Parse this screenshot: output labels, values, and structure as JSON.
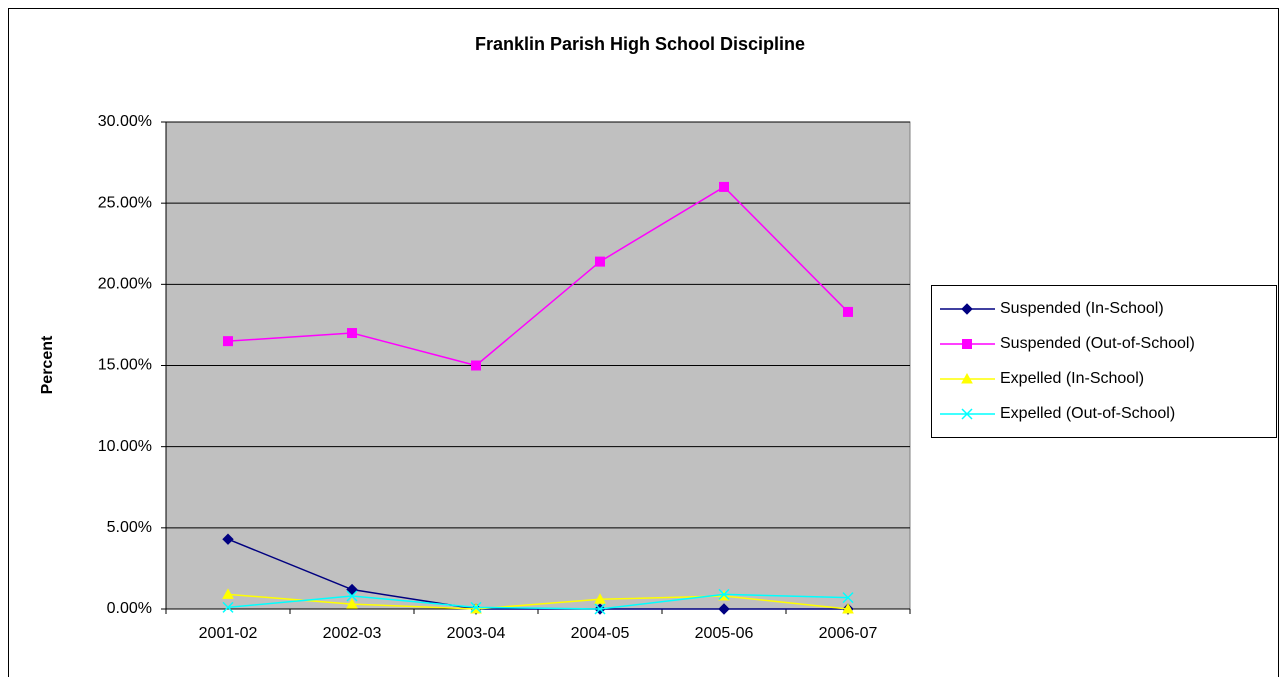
{
  "chart_data": {
    "type": "line",
    "title": "Franklin Parish High School Discipline",
    "y_label": "Percent",
    "categories": [
      "2001-02",
      "2002-03",
      "2003-04",
      "2004-05",
      "2005-06",
      "2006-07"
    ],
    "series": [
      {
        "name": "Suspended (In-School)",
        "color": "#000080",
        "marker": "diamond",
        "values": [
          4.3,
          1.2,
          0,
          0,
          0,
          0
        ]
      },
      {
        "name": "Suspended (Out-of-School)",
        "color": "#ff00ff",
        "marker": "square",
        "values": [
          16.5,
          17.0,
          15.0,
          21.4,
          26.0,
          18.3
        ]
      },
      {
        "name": "Expelled (In-School)",
        "color": "#ffff00",
        "marker": "triangle",
        "values": [
          0.9,
          0.3,
          0.0,
          0.6,
          0.8,
          0.0
        ]
      },
      {
        "name": "Expelled (Out-of-School)",
        "color": "#00ffff",
        "marker": "x",
        "values": [
          0.1,
          0.8,
          0.1,
          0.0,
          0.9,
          0.7
        ]
      }
    ],
    "ylim": [
      0,
      30
    ],
    "yticks": [
      {
        "value": 0,
        "label": "0.00%"
      },
      {
        "value": 5,
        "label": "5.00%"
      },
      {
        "value": 10,
        "label": "10.00%"
      },
      {
        "value": 15,
        "label": "15.00%"
      },
      {
        "value": 20,
        "label": "20.00%"
      },
      {
        "value": 25,
        "label": "25.00%"
      },
      {
        "value": 30,
        "label": "30.00%"
      }
    ],
    "grid": true,
    "legend": "right"
  }
}
